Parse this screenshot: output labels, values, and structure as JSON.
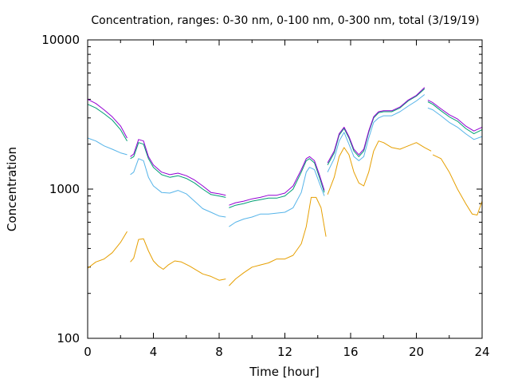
{
  "chart_data": {
    "type": "line",
    "title": "Concentration, ranges: 0-30 nm, 0-100 nm, 0-300 nm, total (3/19/19)",
    "xlabel": "Time [hour]",
    "ylabel": "Concentration",
    "xlim": [
      0,
      24
    ],
    "ylim": [
      100,
      10000
    ],
    "yscale": "log",
    "x_ticks": [
      0,
      4,
      8,
      12,
      16,
      20,
      24
    ],
    "y_ticks": [
      100,
      1000,
      10000
    ],
    "legend": "none",
    "grid": false,
    "series": [
      {
        "color": "#e69f00",
        "segments": [
          [
            [
              0,
              295
            ],
            [
              0.5,
              325
            ],
            [
              1,
              340
            ],
            [
              1.5,
              375
            ],
            [
              2,
              440
            ],
            [
              2.4,
              520
            ]
          ],
          [
            [
              2.6,
              325
            ],
            [
              2.8,
              345
            ],
            [
              3.1,
              460
            ],
            [
              3.4,
              465
            ],
            [
              3.7,
              385
            ],
            [
              4,
              330
            ],
            [
              4.3,
              305
            ],
            [
              4.6,
              290
            ],
            [
              4.9,
              310
            ],
            [
              5.3,
              330
            ],
            [
              5.7,
              325
            ],
            [
              6.2,
              305
            ],
            [
              7,
              270
            ],
            [
              7.5,
              260
            ],
            [
              8,
              245
            ],
            [
              8.4,
              250
            ]
          ],
          [
            [
              8.6,
              225
            ],
            [
              9,
              250
            ],
            [
              9.5,
              275
            ],
            [
              10,
              300
            ],
            [
              10.5,
              310
            ],
            [
              11,
              320
            ],
            [
              11.5,
              340
            ],
            [
              12,
              340
            ],
            [
              12.5,
              360
            ],
            [
              13,
              430
            ],
            [
              13.3,
              560
            ],
            [
              13.6,
              880
            ],
            [
              13.9,
              880
            ],
            [
              14.2,
              750
            ],
            [
              14.5,
              480
            ]
          ],
          [
            [
              14.6,
              920
            ],
            [
              15,
              1200
            ],
            [
              15.3,
              1650
            ],
            [
              15.6,
              1900
            ],
            [
              15.9,
              1700
            ],
            [
              16.2,
              1300
            ],
            [
              16.5,
              1100
            ],
            [
              16.8,
              1050
            ],
            [
              17.1,
              1300
            ],
            [
              17.4,
              1800
            ],
            [
              17.7,
              2100
            ],
            [
              18,
              2050
            ],
            [
              18.5,
              1900
            ],
            [
              19,
              1850
            ],
            [
              19.5,
              1950
            ],
            [
              20,
              2050
            ],
            [
              20.5,
              1900
            ],
            [
              20.9,
              1800
            ]
          ],
          [
            [
              21,
              1700
            ],
            [
              21.5,
              1600
            ],
            [
              22,
              1300
            ],
            [
              22.5,
              1000
            ],
            [
              23,
              800
            ],
            [
              23.4,
              680
            ],
            [
              23.7,
              670
            ],
            [
              24,
              830
            ]
          ]
        ]
      },
      {
        "color": "#56b4e9",
        "segments": [
          [
            [
              0,
              2200
            ],
            [
              0.5,
              2100
            ],
            [
              1,
              1950
            ],
            [
              1.5,
              1850
            ],
            [
              2,
              1750
            ],
            [
              2.4,
              1700
            ]
          ],
          [
            [
              2.6,
              1250
            ],
            [
              2.8,
              1300
            ],
            [
              3.1,
              1600
            ],
            [
              3.4,
              1550
            ],
            [
              3.7,
              1200
            ],
            [
              4,
              1050
            ],
            [
              4.5,
              950
            ],
            [
              5,
              940
            ],
            [
              5.5,
              980
            ],
            [
              6,
              930
            ],
            [
              6.5,
              830
            ],
            [
              7,
              740
            ],
            [
              7.5,
              700
            ],
            [
              8,
              660
            ],
            [
              8.4,
              650
            ]
          ],
          [
            [
              8.6,
              560
            ],
            [
              9,
              600
            ],
            [
              9.5,
              630
            ],
            [
              10,
              650
            ],
            [
              10.5,
              680
            ],
            [
              11,
              680
            ],
            [
              11.5,
              690
            ],
            [
              12,
              700
            ],
            [
              12.5,
              750
            ],
            [
              13,
              950
            ],
            [
              13.3,
              1300
            ],
            [
              13.5,
              1400
            ],
            [
              13.8,
              1350
            ],
            [
              14.1,
              1100
            ],
            [
              14.4,
              900
            ]
          ],
          [
            [
              14.6,
              1300
            ],
            [
              15,
              1600
            ],
            [
              15.3,
              2100
            ],
            [
              15.6,
              2400
            ],
            [
              15.9,
              2000
            ],
            [
              16.2,
              1650
            ],
            [
              16.5,
              1550
            ],
            [
              16.8,
              1650
            ],
            [
              17.1,
              2200
            ],
            [
              17.4,
              2800
            ],
            [
              17.7,
              3000
            ],
            [
              18,
              3100
            ],
            [
              18.5,
              3100
            ],
            [
              19,
              3300
            ],
            [
              19.5,
              3600
            ],
            [
              20,
              3900
            ],
            [
              20.5,
              4300
            ]
          ],
          [
            [
              20.7,
              3500
            ],
            [
              21,
              3400
            ],
            [
              21.5,
              3100
            ],
            [
              22,
              2800
            ],
            [
              22.5,
              2600
            ],
            [
              23,
              2350
            ],
            [
              23.5,
              2150
            ],
            [
              24,
              2250
            ]
          ]
        ]
      },
      {
        "color": "#009e73",
        "segments": [
          [
            [
              0,
              3700
            ],
            [
              0.5,
              3500
            ],
            [
              1,
              3200
            ],
            [
              1.5,
              2900
            ],
            [
              2,
              2500
            ],
            [
              2.4,
              2100
            ]
          ],
          [
            [
              2.6,
              1600
            ],
            [
              2.8,
              1650
            ],
            [
              3.1,
              2050
            ],
            [
              3.4,
              2000
            ],
            [
              3.7,
              1600
            ],
            [
              4,
              1400
            ],
            [
              4.5,
              1250
            ],
            [
              5,
              1200
            ],
            [
              5.5,
              1230
            ],
            [
              6,
              1180
            ],
            [
              6.5,
              1100
            ],
            [
              7,
              1000
            ],
            [
              7.5,
              920
            ],
            [
              8,
              900
            ],
            [
              8.4,
              880
            ]
          ],
          [
            [
              8.6,
              750
            ],
            [
              9,
              780
            ],
            [
              9.5,
              800
            ],
            [
              10,
              830
            ],
            [
              10.5,
              850
            ],
            [
              11,
              870
            ],
            [
              11.5,
              870
            ],
            [
              12,
              900
            ],
            [
              12.5,
              1000
            ],
            [
              13,
              1300
            ],
            [
              13.3,
              1550
            ],
            [
              13.5,
              1600
            ],
            [
              13.8,
              1500
            ],
            [
              14.1,
              1200
            ],
            [
              14.4,
              950
            ]
          ],
          [
            [
              14.6,
              1450
            ],
            [
              15,
              1750
            ],
            [
              15.3,
              2300
            ],
            [
              15.6,
              2550
            ],
            [
              15.9,
              2200
            ],
            [
              16.2,
              1800
            ],
            [
              16.5,
              1650
            ],
            [
              16.8,
              1800
            ],
            [
              17.1,
              2400
            ],
            [
              17.4,
              3000
            ],
            [
              17.7,
              3250
            ],
            [
              18,
              3300
            ],
            [
              18.5,
              3300
            ],
            [
              19,
              3500
            ],
            [
              19.5,
              3900
            ],
            [
              20,
              4200
            ],
            [
              20.5,
              4700
            ]
          ],
          [
            [
              20.7,
              3850
            ],
            [
              21,
              3700
            ],
            [
              21.5,
              3350
            ],
            [
              22,
              3050
            ],
            [
              22.5,
              2850
            ],
            [
              23,
              2550
            ],
            [
              23.5,
              2350
            ],
            [
              24,
              2500
            ]
          ]
        ]
      },
      {
        "color": "#9400d3",
        "segments": [
          [
            [
              0,
              4000
            ],
            [
              0.5,
              3750
            ],
            [
              1,
              3400
            ],
            [
              1.5,
              3050
            ],
            [
              2,
              2650
            ],
            [
              2.4,
              2200
            ]
          ],
          [
            [
              2.6,
              1650
            ],
            [
              2.8,
              1720
            ],
            [
              3.1,
              2150
            ],
            [
              3.4,
              2100
            ],
            [
              3.7,
              1650
            ],
            [
              4,
              1450
            ],
            [
              4.5,
              1300
            ],
            [
              5,
              1250
            ],
            [
              5.5,
              1280
            ],
            [
              6,
              1230
            ],
            [
              6.5,
              1150
            ],
            [
              7,
              1050
            ],
            [
              7.5,
              950
            ],
            [
              8,
              930
            ],
            [
              8.4,
              910
            ]
          ],
          [
            [
              8.6,
              780
            ],
            [
              9,
              810
            ],
            [
              9.5,
              830
            ],
            [
              10,
              860
            ],
            [
              10.5,
              880
            ],
            [
              11,
              910
            ],
            [
              11.5,
              910
            ],
            [
              12,
              940
            ],
            [
              12.5,
              1050
            ],
            [
              13,
              1350
            ],
            [
              13.3,
              1600
            ],
            [
              13.5,
              1650
            ],
            [
              13.8,
              1550
            ],
            [
              14.1,
              1250
            ],
            [
              14.4,
              980
            ]
          ],
          [
            [
              14.6,
              1500
            ],
            [
              15,
              1800
            ],
            [
              15.3,
              2350
            ],
            [
              15.6,
              2600
            ],
            [
              15.9,
              2250
            ],
            [
              16.2,
              1850
            ],
            [
              16.5,
              1700
            ],
            [
              16.8,
              1850
            ],
            [
              17.1,
              2450
            ],
            [
              17.4,
              3050
            ],
            [
              17.7,
              3300
            ],
            [
              18,
              3350
            ],
            [
              18.5,
              3350
            ],
            [
              19,
              3550
            ],
            [
              19.5,
              3950
            ],
            [
              20,
              4250
            ],
            [
              20.5,
              4800
            ]
          ],
          [
            [
              20.7,
              3950
            ],
            [
              21,
              3800
            ],
            [
              21.5,
              3450
            ],
            [
              22,
              3150
            ],
            [
              22.5,
              2950
            ],
            [
              23,
              2650
            ],
            [
              23.5,
              2450
            ],
            [
              24,
              2600
            ]
          ]
        ]
      }
    ]
  }
}
